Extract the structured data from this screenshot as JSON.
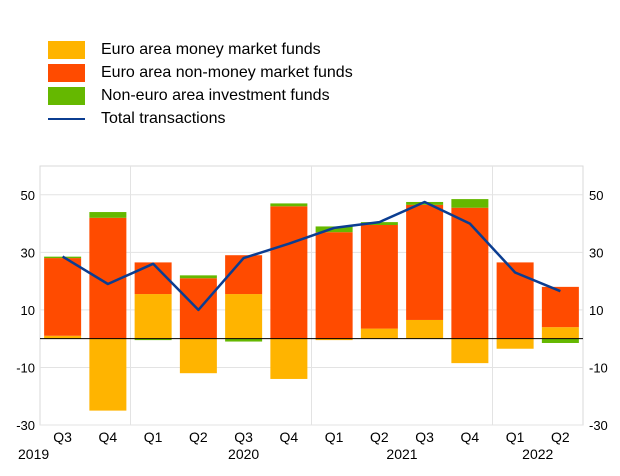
{
  "chart_data": {
    "type": "bar",
    "stacked": true,
    "grid": true,
    "legend_position": "top-left",
    "ylim": [
      -30,
      60
    ],
    "yticks": [
      -30,
      -10,
      10,
      30,
      50
    ],
    "categories": [
      "Q3",
      "Q4",
      "Q1",
      "Q2",
      "Q3",
      "Q4",
      "Q1",
      "Q2",
      "Q3",
      "Q4",
      "Q1",
      "Q2"
    ],
    "year_labels": [
      {
        "label": "2019",
        "index": 0
      },
      {
        "label": "2020",
        "index": 4
      },
      {
        "label": "2021",
        "index": 7.5
      },
      {
        "label": "2022",
        "index": 10.5
      }
    ],
    "year_separators": [
      1.5,
      5.5,
      9.5
    ],
    "series": [
      {
        "name": "Euro area money market funds",
        "color": "#ffb400",
        "values": [
          1,
          -25,
          15.5,
          -12,
          15.5,
          -14,
          -0.5,
          3.5,
          6.5,
          -8.5,
          -3.5,
          4
        ]
      },
      {
        "name": "Euro area non-money market funds",
        "color": "#ff4b00",
        "values": [
          27,
          42,
          11,
          21,
          13.5,
          46,
          37,
          36,
          40,
          45.5,
          26.5,
          14
        ]
      },
      {
        "name": "Non-euro area investment funds",
        "color": "#65b800",
        "values": [
          0.5,
          2,
          -0.5,
          1,
          -1,
          1,
          2,
          1,
          1,
          3,
          0,
          -1.5
        ]
      }
    ],
    "line": {
      "name": "Total transactions",
      "color": "#0b3d91",
      "values": [
        28.5,
        19,
        26,
        10,
        28,
        33,
        38.5,
        40.5,
        47.5,
        40,
        23,
        16.5
      ]
    }
  }
}
